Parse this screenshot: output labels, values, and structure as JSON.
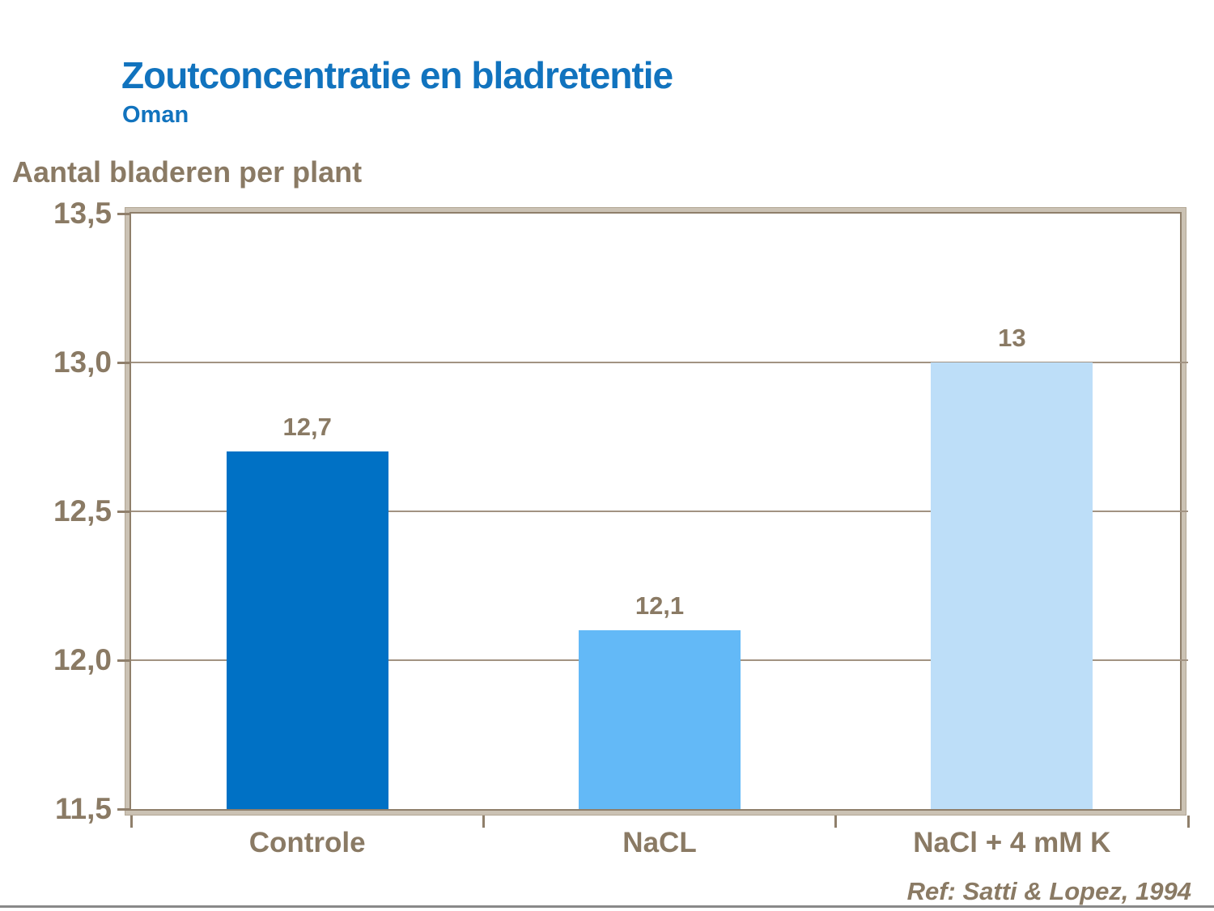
{
  "chart_data": {
    "type": "bar",
    "title": "Zoutconcentratie en bladretentie",
    "subtitle": "Oman",
    "ylabel": "Aantal bladeren per plant",
    "categories": [
      "Controle",
      "NaCL",
      "NaCl + 4 mM K"
    ],
    "values": [
      12.7,
      12.1,
      13
    ],
    "value_labels": [
      "12,7",
      "12,1",
      "13"
    ],
    "ylim": [
      11.5,
      13.5
    ],
    "ytick_values": [
      13.5,
      13.0,
      12.5,
      12.0,
      11.5
    ],
    "ytick_labels": [
      "13,5",
      "13,0",
      "12,5",
      "12,0",
      "11,5"
    ],
    "grid": true,
    "legend": "none",
    "bar_colors": [
      "#0071C5",
      "#63B9F7",
      "#BDDEF8"
    ],
    "reference": "Ref: Satti & Lopez, 1994"
  },
  "colors": {
    "title_blue": "#1173BE",
    "text_brown": "#8A7A64",
    "frame_tan": "#CBC2B4",
    "frame_dark": "#8F7F6B",
    "gridline": "#A29382",
    "footer_gray": "#898989",
    "background": "#FFFFFF"
  }
}
